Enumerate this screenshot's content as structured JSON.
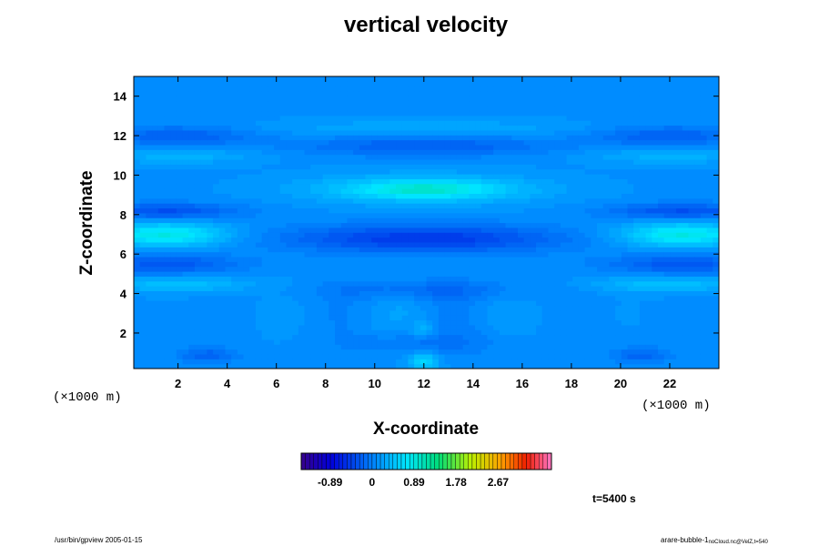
{
  "chart_data": {
    "type": "heatmap",
    "title": "vertical velocity",
    "xlabel": "X-coordinate",
    "ylabel": "Z-coordinate",
    "x_unit_label": "(×1000 m)",
    "xlim": [
      0.2,
      24
    ],
    "ylim": [
      0.2,
      15
    ],
    "x_ticks": [
      2,
      4,
      6,
      8,
      10,
      12,
      14,
      16,
      18,
      20,
      22
    ],
    "y_ticks": [
      2,
      4,
      6,
      8,
      10,
      12,
      14
    ],
    "colorbar": {
      "ticks": [
        "-0.89",
        "0",
        "0.89",
        "1.78",
        "2.67"
      ],
      "tick_values": [
        -0.89,
        0,
        0.89,
        1.78,
        2.67
      ],
      "range": [
        -1.5,
        3.8
      ],
      "n_bins": 60
    },
    "time_label": "t=5400 s",
    "features": [
      {
        "kind": "max",
        "x": 12,
        "z": 9.2,
        "value": 0.8
      },
      {
        "kind": "max",
        "x": 2,
        "z": 7.0,
        "value": 1.0
      },
      {
        "kind": "max",
        "x": 22.5,
        "z": 7.0,
        "value": 1.0
      },
      {
        "kind": "min",
        "x": 12,
        "z": 6.8,
        "value": -0.6
      },
      {
        "kind": "max",
        "x": 12,
        "z": 0.6,
        "value": 0.6
      },
      {
        "kind": "max",
        "x": 12,
        "z": 2.2,
        "value": 0.4
      }
    ]
  },
  "footer": {
    "left": "/usr/bin/gpview 2005-01-15",
    "right_main": "arare-bubble-1",
    "right_sub": "noCloud.nc@VelZ,t=540"
  }
}
